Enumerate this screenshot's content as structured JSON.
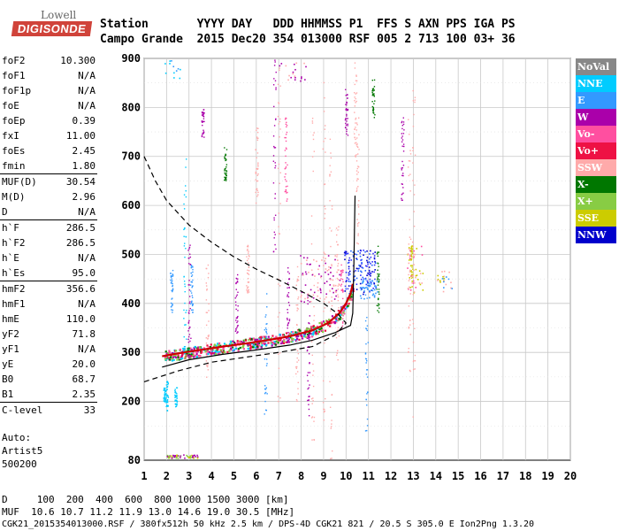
{
  "logo": {
    "line1": "Lowell",
    "line2": "DIGISONDE"
  },
  "header": {
    "row1": "Station       YYYY DAY   DDD HHMMSS P1  FFS S AXN PPS IGA PS",
    "row2": "Campo Grande  2015 Dec20 354 013000 RSF 005 2 713 100 03+ 36"
  },
  "params": [
    {
      "label": "foF2",
      "value": "10.300"
    },
    {
      "label": "foF1",
      "value": "N/A"
    },
    {
      "label": "foF1p",
      "value": "N/A"
    },
    {
      "label": "foE",
      "value": "N/A"
    },
    {
      "label": "foEp",
      "value": "0.39"
    },
    {
      "label": "fxI",
      "value": "11.00"
    },
    {
      "label": "foEs",
      "value": "2.45"
    },
    {
      "label": "fmin",
      "value": "1.80"
    },
    {
      "label": "MUF(D)",
      "value": "30.54"
    },
    {
      "label": "M(D)",
      "value": "2.96"
    },
    {
      "label": "D",
      "value": "N/A"
    },
    {
      "label": "h`F",
      "value": "286.5"
    },
    {
      "label": "h`F2",
      "value": "286.5"
    },
    {
      "label": "h`E",
      "value": "N/A"
    },
    {
      "label": "h`Es",
      "value": "95.0"
    },
    {
      "label": "hmF2",
      "value": "356.6"
    },
    {
      "label": "hmF1",
      "value": "N/A"
    },
    {
      "label": "hmE",
      "value": "110.0"
    },
    {
      "label": "yF2",
      "value": "71.8"
    },
    {
      "label": "yF1",
      "value": "N/A"
    },
    {
      "label": "yE",
      "value": "20.0"
    },
    {
      "label": "B0",
      "value": "68.7"
    },
    {
      "label": "B1",
      "value": "2.35"
    },
    {
      "label": "C-level",
      "value": "33"
    }
  ],
  "auto": {
    "line1": "Auto:",
    "line2": "Artist5",
    "line3": "500200"
  },
  "legend": [
    {
      "label": "NoVal",
      "color": "#888888"
    },
    {
      "label": "NNE",
      "color": "#00ccff"
    },
    {
      "label": "E",
      "color": "#3399ff"
    },
    {
      "label": "W",
      "color": "#aa00aa"
    },
    {
      "label": "Vo-",
      "color": "#ff4fa0"
    },
    {
      "label": "Vo+",
      "color": "#ee1144"
    },
    {
      "label": "SSW",
      "color": "#ffaaaa"
    },
    {
      "label": "X-",
      "color": "#007700"
    },
    {
      "label": "X+",
      "color": "#88cc44"
    },
    {
      "label": "SSE",
      "color": "#cccc00"
    },
    {
      "label": "NNW",
      "color": "#0000cc"
    }
  ],
  "chart_data": {
    "type": "scatter",
    "xlim": [
      1,
      20
    ],
    "ylim": [
      80,
      900
    ],
    "x_ticks": [
      "1",
      "2",
      "3",
      "4",
      "5",
      "6",
      "7",
      "8",
      "9",
      "10",
      "11",
      "12",
      "13",
      "14",
      "15",
      "16",
      "17",
      "18",
      "19",
      "20"
    ],
    "y_ticks": [
      "80",
      "200",
      "300",
      "400",
      "500",
      "600",
      "700",
      "800",
      "900"
    ],
    "trace_profile": [
      [
        1.8,
        292
      ],
      [
        2.5,
        298
      ],
      [
        3.5,
        305
      ],
      [
        4.5,
        312
      ],
      [
        5.5,
        318
      ],
      [
        6.5,
        325
      ],
      [
        7.5,
        333
      ],
      [
        8.5,
        345
      ],
      [
        9.2,
        360
      ],
      [
        9.7,
        380
      ],
      [
        10.0,
        400
      ],
      [
        10.2,
        420
      ],
      [
        10.3,
        440
      ]
    ],
    "true_height": [
      [
        1.8,
        270
      ],
      [
        3,
        285
      ],
      [
        4.5,
        296
      ],
      [
        6,
        305
      ],
      [
        7.5,
        315
      ],
      [
        8.5,
        325
      ],
      [
        9.5,
        340
      ],
      [
        10.2,
        355
      ],
      [
        10.3,
        380
      ],
      [
        10.35,
        480
      ],
      [
        10.4,
        620
      ]
    ],
    "dashed_profile": [
      [
        1.0,
        700
      ],
      [
        1.5,
        650
      ],
      [
        2.0,
        610
      ],
      [
        3.0,
        560
      ],
      [
        4.0,
        525
      ],
      [
        5.0,
        495
      ],
      [
        6.0,
        470
      ],
      [
        7.0,
        448
      ],
      [
        8.0,
        425
      ],
      [
        9.0,
        400
      ],
      [
        9.6,
        380
      ],
      [
        10.0,
        360
      ],
      [
        9.5,
        335
      ],
      [
        8.5,
        312
      ],
      [
        7.0,
        300
      ],
      [
        5.5,
        290
      ],
      [
        4.0,
        280
      ],
      [
        2.5,
        262
      ],
      [
        1.0,
        240
      ]
    ]
  },
  "footer": {
    "line1": "D     100  200  400  600  800 1000 1500 3000 [km]",
    "line2": "MUF  10.6 10.7 11.2 11.9 13.0 14.6 19.0 30.5 [MHz]",
    "status": "CGK21_2015354013000.RSF / 380fx512h 50 kHz 2.5 km / DPS-4D CGK21 821 / 20.5 S 305.0 E Ion2Png 1.3.20"
  }
}
